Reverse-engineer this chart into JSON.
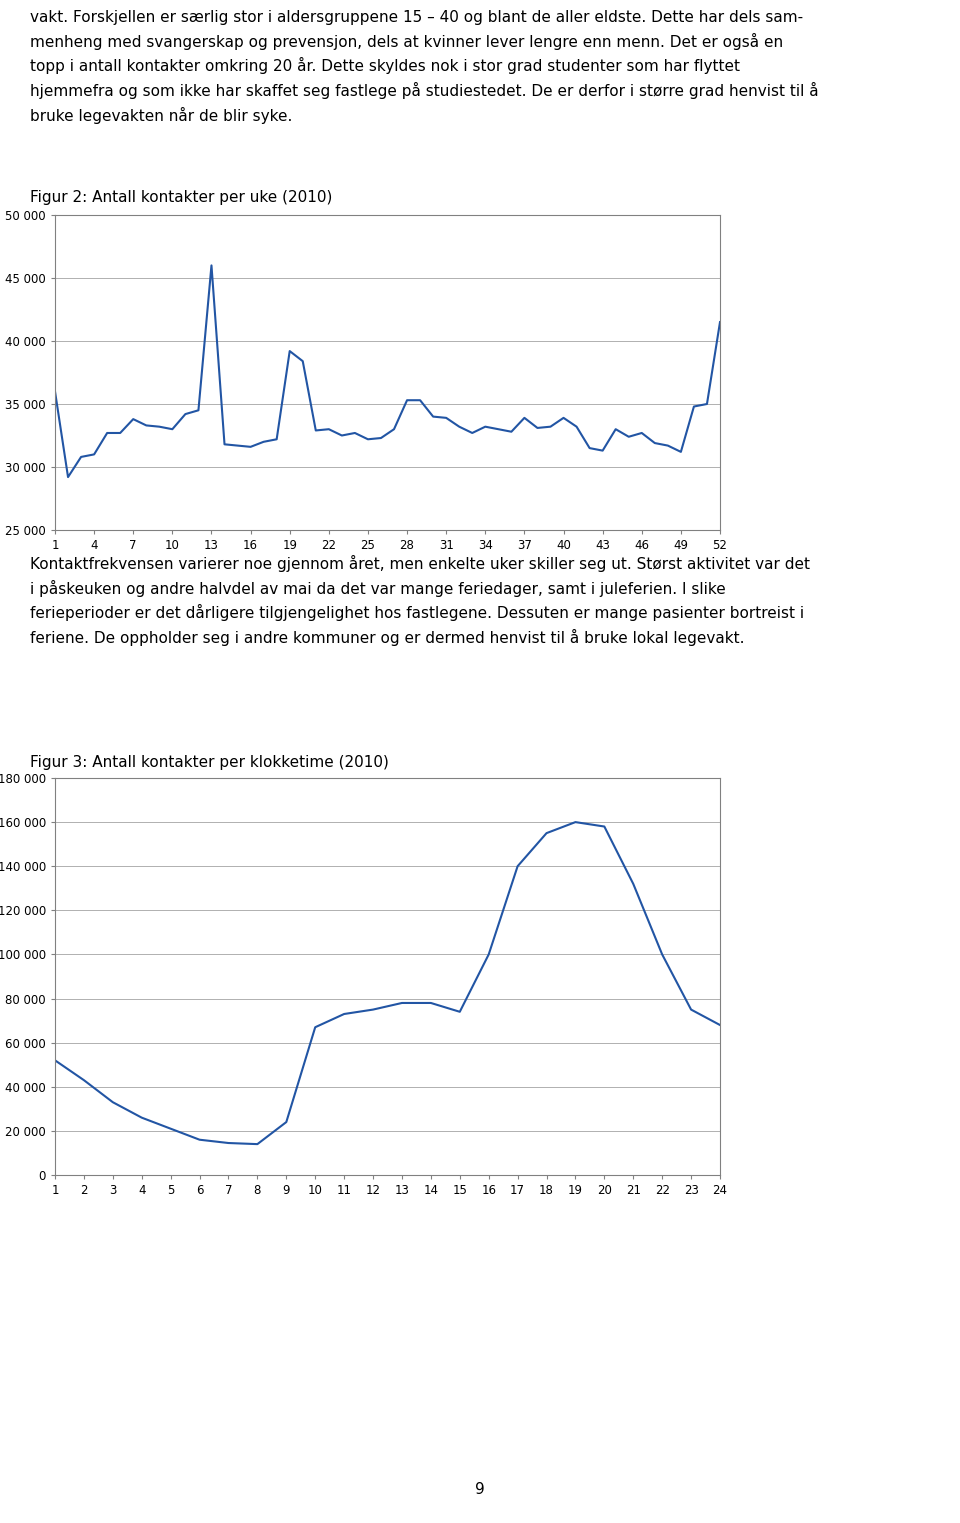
{
  "text1": "vakt. Forskjellen er særlig stor i aldersgruppene 15 – 40 og blant de aller eldste. Dette har dels sam-\nmenheng med svangerskap og prevensjon, dels at kvinner lever lengre enn menn. Det er også en\ntopp i antall kontakter omkring 20 år. Dette skyldes nok i stor grad studenter som har flyttet\nhjemmefra og som ikke har skaffet seg fastlege på studiestedet. De er derfor i større grad henvist til å\nbruke legevakten når de blir syke.",
  "fig2_title": "Figur 2: Antall kontakter per uke (2010)",
  "fig2_weeks": [
    1,
    2,
    3,
    4,
    5,
    6,
    7,
    8,
    9,
    10,
    11,
    12,
    13,
    14,
    15,
    16,
    17,
    18,
    19,
    20,
    21,
    22,
    23,
    24,
    25,
    26,
    27,
    28,
    29,
    30,
    31,
    32,
    33,
    34,
    35,
    36,
    37,
    38,
    39,
    40,
    41,
    42,
    43,
    44,
    45,
    46,
    47,
    48,
    49,
    50,
    51,
    52
  ],
  "fig2_values": [
    36000,
    29200,
    30800,
    31000,
    32700,
    32700,
    33800,
    33300,
    33200,
    33000,
    34200,
    34500,
    46000,
    31800,
    31700,
    31600,
    32000,
    32200,
    39200,
    38400,
    32900,
    33000,
    32500,
    32700,
    32200,
    32300,
    33000,
    35300,
    35300,
    34000,
    33900,
    33200,
    32700,
    33200,
    33000,
    32800,
    33900,
    33100,
    33200,
    33900,
    33200,
    31500,
    31300,
    33000,
    32400,
    32700,
    31900,
    31700,
    31200,
    34800,
    35000,
    41500
  ],
  "fig2_ylim": [
    25000,
    50000
  ],
  "fig2_yticks": [
    25000,
    30000,
    35000,
    40000,
    45000,
    50000
  ],
  "fig2_xticks": [
    1,
    4,
    7,
    10,
    13,
    16,
    19,
    22,
    25,
    28,
    31,
    34,
    37,
    40,
    43,
    46,
    49,
    52
  ],
  "fig2_line_color": "#2255A4",
  "text2": "Kontaktfrekvensen varierer noe gjennom året, men enkelte uker skiller seg ut. Størst aktivitet var det\ni påskeuken og andre halvdel av mai da det var mange feriedager, samt i juleferien. I slike\nferieperioder er det dårligere tilgjengelighet hos fastlegene. Dessuten er mange pasienter bortreist i\nferiene. De oppholder seg i andre kommuner og er dermed henvist til å bruke lokal legevakt.",
  "fig3_title": "Figur 3: Antall kontakter per klokketime (2010)",
  "fig3_hours": [
    1,
    2,
    3,
    4,
    5,
    6,
    7,
    8,
    9,
    10,
    11,
    12,
    13,
    14,
    15,
    16,
    17,
    18,
    19,
    20,
    21,
    22,
    23,
    24
  ],
  "fig3_values": [
    52000,
    43000,
    33000,
    26000,
    21000,
    16000,
    14500,
    14000,
    24000,
    67000,
    73000,
    75000,
    78000,
    78000,
    74000,
    100000,
    140000,
    155000,
    160000,
    158000,
    132000,
    100000,
    75000,
    68000
  ],
  "fig3_ylim": [
    0,
    180000
  ],
  "fig3_yticks": [
    0,
    20000,
    40000,
    60000,
    80000,
    100000,
    120000,
    140000,
    160000,
    180000
  ],
  "fig3_xticks": [
    1,
    2,
    3,
    4,
    5,
    6,
    7,
    8,
    9,
    10,
    11,
    12,
    13,
    14,
    15,
    16,
    17,
    18,
    19,
    20,
    21,
    22,
    23,
    24
  ],
  "fig3_line_color": "#2255A4",
  "page_num": "9",
  "background_color": "#ffffff",
  "grid_color": "#b0b0b0",
  "box_color": "#808080",
  "text_fontsize": 11.0,
  "title_fontsize": 11.0
}
